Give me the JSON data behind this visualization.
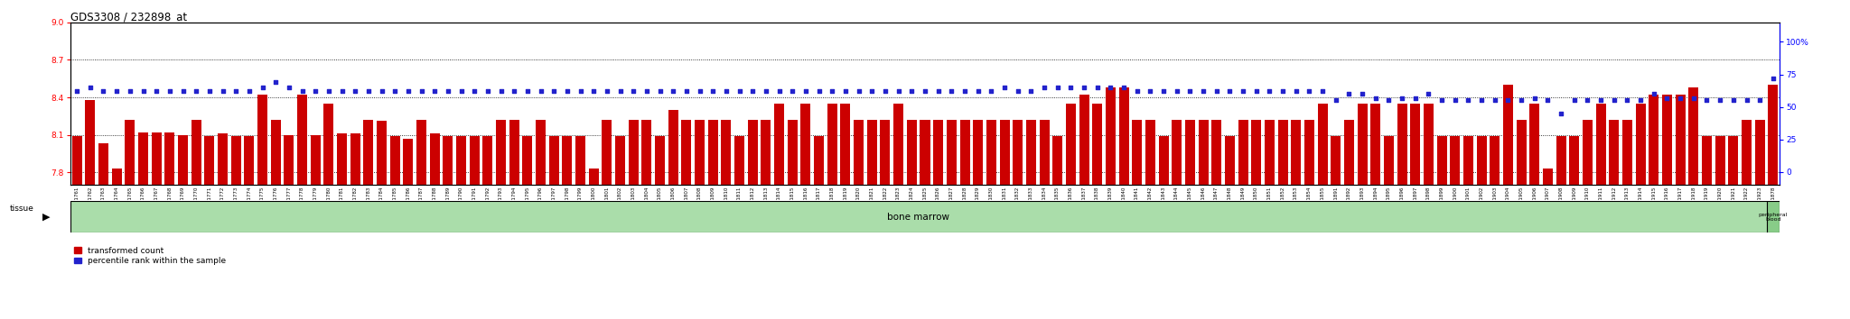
{
  "title": "GDS3308 / 232898_at",
  "ylim_left": [
    7.7,
    9.0
  ],
  "ylim_right": [
    -10,
    115
  ],
  "yticks_left": [
    7.8,
    8.1,
    8.4,
    8.7,
    9.0
  ],
  "yticks_right": [
    0,
    25,
    50,
    75,
    100
  ],
  "bar_color": "#CC0000",
  "dot_color": "#2222CC",
  "tissue_color": "#AADDAA",
  "tissue_label": "bone marrow",
  "tissue_label2": "peripheral\nblood",
  "legend_items": [
    "transformed count",
    "percentile rank within the sample"
  ],
  "samples": [
    "GSM311761",
    "GSM311762",
    "GSM311763",
    "GSM311764",
    "GSM311765",
    "GSM311766",
    "GSM311767",
    "GSM311768",
    "GSM311769",
    "GSM311770",
    "GSM311771",
    "GSM311772",
    "GSM311773",
    "GSM311774",
    "GSM311775",
    "GSM311776",
    "GSM311777",
    "GSM311778",
    "GSM311779",
    "GSM311780",
    "GSM311781",
    "GSM311782",
    "GSM311783",
    "GSM311784",
    "GSM311785",
    "GSM311786",
    "GSM311787",
    "GSM311788",
    "GSM311789",
    "GSM311790",
    "GSM311791",
    "GSM311792",
    "GSM311793",
    "GSM311794",
    "GSM311795",
    "GSM311796",
    "GSM311797",
    "GSM311798",
    "GSM311799",
    "GSM311800",
    "GSM311801",
    "GSM311802",
    "GSM311803",
    "GSM311804",
    "GSM311805",
    "GSM311806",
    "GSM311807",
    "GSM311808",
    "GSM311809",
    "GSM311810",
    "GSM311811",
    "GSM311812",
    "GSM311813",
    "GSM311814",
    "GSM311815",
    "GSM311816",
    "GSM311817",
    "GSM311818",
    "GSM311819",
    "GSM311820",
    "GSM311821",
    "GSM311822",
    "GSM311823",
    "GSM311824",
    "GSM311825",
    "GSM311826",
    "GSM311827",
    "GSM311828",
    "GSM311829",
    "GSM311830",
    "GSM311831",
    "GSM311832",
    "GSM311833",
    "GSM311834",
    "GSM311835",
    "GSM311836",
    "GSM311837",
    "GSM311838",
    "GSM311839",
    "GSM311840",
    "GSM311841",
    "GSM311842",
    "GSM311843",
    "GSM311844",
    "GSM311845",
    "GSM311846",
    "GSM311847",
    "GSM311848",
    "GSM311849",
    "GSM311850",
    "GSM311851",
    "GSM311852",
    "GSM311853",
    "GSM311854",
    "GSM311855",
    "GSM311891",
    "GSM311892",
    "GSM311893",
    "GSM311894",
    "GSM311895",
    "GSM311896",
    "GSM311897",
    "GSM311898",
    "GSM311899",
    "GSM311900",
    "GSM311901",
    "GSM311902",
    "GSM311903",
    "GSM311904",
    "GSM311905",
    "GSM311906",
    "GSM311907",
    "GSM311908",
    "GSM311909",
    "GSM311910",
    "GSM311911",
    "GSM311912",
    "GSM311913",
    "GSM311914",
    "GSM311915",
    "GSM311916",
    "GSM311917",
    "GSM311918",
    "GSM311919",
    "GSM311920",
    "GSM311921",
    "GSM311922",
    "GSM311923",
    "GSM311878"
  ],
  "bar_values": [
    8.09,
    8.38,
    8.03,
    7.83,
    8.22,
    8.12,
    8.12,
    8.12,
    8.1,
    8.22,
    8.09,
    8.11,
    8.09,
    8.09,
    8.42,
    8.22,
    8.1,
    8.42,
    8.1,
    8.35,
    8.11,
    8.11,
    8.22,
    8.21,
    8.09,
    8.07,
    8.22,
    8.11,
    8.09,
    8.09,
    8.09,
    8.09,
    8.22,
    8.22,
    8.09,
    8.22,
    8.09,
    8.09,
    8.09,
    7.83,
    8.22,
    8.09,
    8.22,
    8.22,
    8.09,
    8.3,
    8.22,
    8.22,
    8.22,
    8.22,
    8.09,
    8.22,
    8.22,
    8.35,
    8.22,
    8.35,
    8.09,
    8.35,
    8.35,
    8.22,
    8.22,
    8.22,
    8.35,
    8.22,
    8.22,
    8.22,
    8.22,
    8.22,
    8.22,
    8.22,
    8.22,
    8.22,
    8.22,
    8.22,
    8.09,
    8.35,
    8.42,
    8.35,
    8.48,
    8.48,
    8.22,
    8.22,
    8.09,
    8.22,
    8.22,
    8.22,
    8.22,
    8.09,
    8.22,
    8.22,
    8.22,
    8.22,
    8.22,
    8.22,
    8.35,
    8.09,
    8.22,
    8.35,
    8.35,
    8.09,
    8.35,
    8.35,
    8.35,
    8.09,
    8.09,
    8.09,
    8.09,
    8.09,
    8.5,
    8.22,
    8.35,
    7.83,
    8.09,
    8.09,
    8.22,
    8.35,
    8.22,
    8.22,
    8.35,
    8.42,
    8.42,
    8.42,
    8.48,
    8.09,
    8.09,
    8.09,
    8.22,
    8.22,
    8.5
  ],
  "dot_values": [
    62,
    65,
    62,
    62,
    62,
    62,
    62,
    62,
    62,
    62,
    62,
    62,
    62,
    62,
    65,
    69,
    65,
    62,
    62,
    62,
    62,
    62,
    62,
    62,
    62,
    62,
    62,
    62,
    62,
    62,
    62,
    62,
    62,
    62,
    62,
    62,
    62,
    62,
    62,
    62,
    62,
    62,
    62,
    62,
    62,
    62,
    62,
    62,
    62,
    62,
    62,
    62,
    62,
    62,
    62,
    62,
    62,
    62,
    62,
    62,
    62,
    62,
    62,
    62,
    62,
    62,
    62,
    62,
    62,
    62,
    65,
    62,
    62,
    65,
    65,
    65,
    65,
    65,
    65,
    65,
    62,
    62,
    62,
    62,
    62,
    62,
    62,
    62,
    62,
    62,
    62,
    62,
    62,
    62,
    62,
    55,
    60,
    60,
    57,
    55,
    57,
    57,
    60,
    55,
    55,
    55,
    55,
    55,
    55,
    55,
    57,
    55,
    45,
    55,
    55,
    55,
    55,
    55,
    55,
    60,
    57,
    57,
    57,
    55,
    55,
    55,
    55,
    55,
    72
  ],
  "n_bone_marrow": 128,
  "n_peripheral": 1,
  "bar_bottom": 7.7
}
